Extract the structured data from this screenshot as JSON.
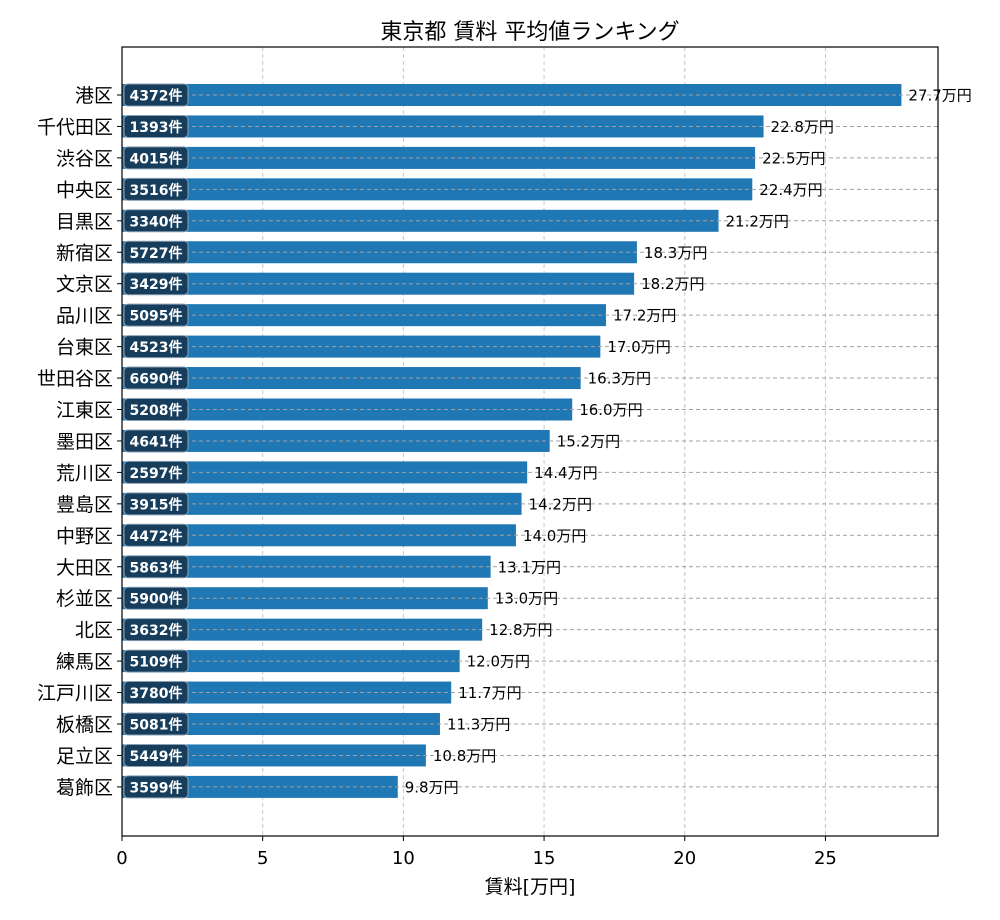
{
  "chart_data": {
    "type": "bar",
    "orientation": "horizontal",
    "title": "東京都 賃料 平均値ランキング",
    "xlabel": "賃料[万円]",
    "ylabel": "",
    "xlim": [
      0,
      29
    ],
    "xticks": [
      0,
      5,
      10,
      15,
      20,
      25
    ],
    "grid": true,
    "value_suffix": "万円",
    "count_suffix": "件",
    "bar_color": "#1f77b4",
    "badge_color": "#163d5c",
    "categories": [
      "港区",
      "千代田区",
      "渋谷区",
      "中央区",
      "目黒区",
      "新宿区",
      "文京区",
      "品川区",
      "台東区",
      "世田谷区",
      "江東区",
      "墨田区",
      "荒川区",
      "豊島区",
      "中野区",
      "大田区",
      "杉並区",
      "北区",
      "練馬区",
      "江戸川区",
      "板橋区",
      "足立区",
      "葛飾区"
    ],
    "values": [
      27.7,
      22.8,
      22.5,
      22.4,
      21.2,
      18.3,
      18.2,
      17.2,
      17.0,
      16.3,
      16.0,
      15.2,
      14.4,
      14.2,
      14.0,
      13.1,
      13.0,
      12.8,
      12.0,
      11.7,
      11.3,
      10.8,
      9.8
    ],
    "value_labels": [
      "27.7",
      "22.8",
      "22.5",
      "22.4",
      "21.2",
      "18.3",
      "18.2",
      "17.2",
      "17.0",
      "16.3",
      "16.0",
      "15.2",
      "14.4",
      "14.2",
      "14.0",
      "13.1",
      "13.0",
      "12.8",
      "12.0",
      "11.7",
      "11.3",
      "10.8",
      "9.8"
    ],
    "counts": [
      4372,
      1393,
      4015,
      3516,
      3340,
      5727,
      3429,
      5095,
      4523,
      6690,
      5208,
      4641,
      2597,
      3915,
      4472,
      5863,
      5900,
      3632,
      5109,
      3780,
      5081,
      5449,
      3599
    ]
  }
}
